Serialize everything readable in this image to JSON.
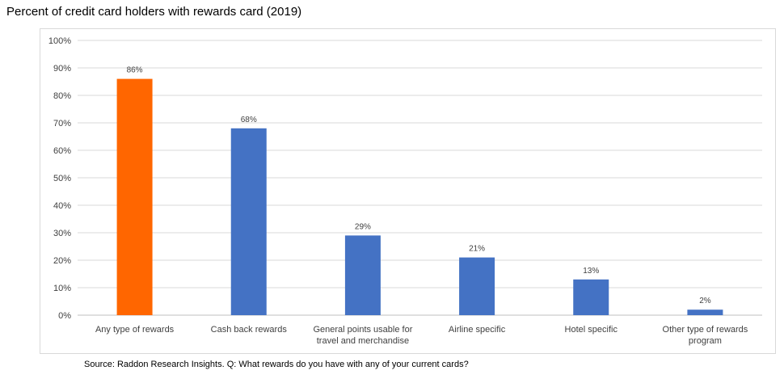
{
  "chart_data": {
    "type": "bar",
    "title": "Percent of credit card holders with rewards card (2019)",
    "categories": [
      "Any type of rewards",
      "Cash back rewards",
      "General points usable for travel and merchandise",
      "Airline specific",
      "Hotel specific",
      "Other type of rewards program"
    ],
    "category_label_lines": [
      [
        "Any type of rewards"
      ],
      [
        "Cash back rewards"
      ],
      [
        "General points usable for",
        "travel and merchandise"
      ],
      [
        "Airline specific"
      ],
      [
        "Hotel specific"
      ],
      [
        "Other type of rewards",
        "program"
      ]
    ],
    "values": [
      86,
      68,
      29,
      21,
      13,
      2
    ],
    "data_labels": [
      "86%",
      "68%",
      "29%",
      "21%",
      "13%",
      "2%"
    ],
    "bar_colors": [
      "#ff6600",
      "#4472c4",
      "#4472c4",
      "#4472c4",
      "#4472c4",
      "#4472c4"
    ],
    "ylim": [
      0,
      100
    ],
    "yticks": [
      0,
      10,
      20,
      30,
      40,
      50,
      60,
      70,
      80,
      90,
      100
    ],
    "ytick_labels": [
      "0%",
      "10%",
      "20%",
      "30%",
      "40%",
      "50%",
      "60%",
      "70%",
      "80%",
      "90%",
      "100%"
    ],
    "xlabel": "",
    "ylabel": "",
    "grid": true,
    "source": "Source: Raddon Research Insights. Q: What rewards do you have with any of your current cards?"
  }
}
